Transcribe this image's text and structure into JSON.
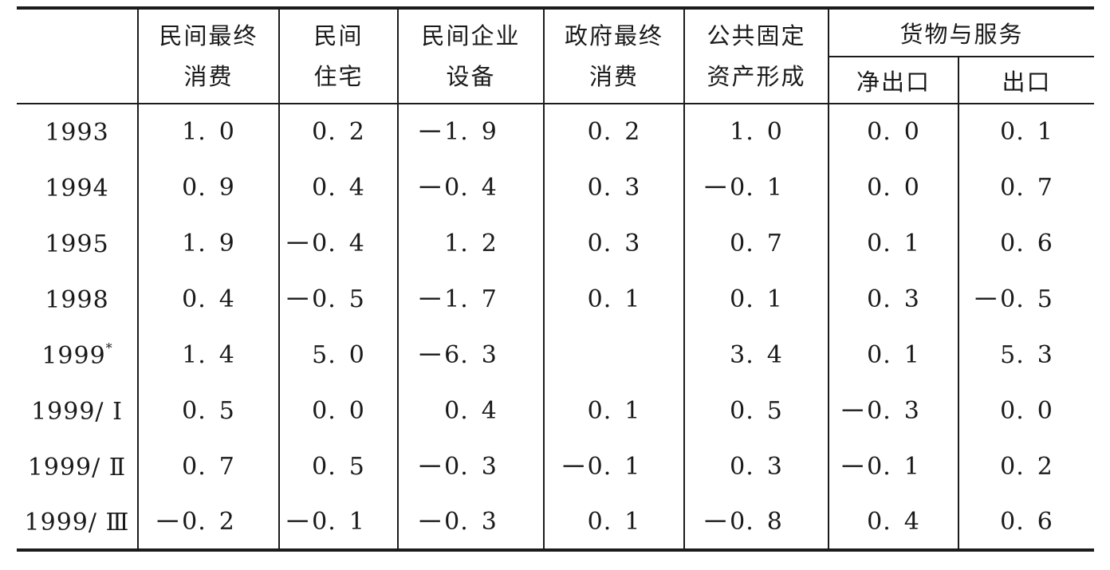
{
  "table": {
    "corner_label": "",
    "col_headers": [
      {
        "label": "民间最终\n消费"
      },
      {
        "label": "民间\n住宅"
      },
      {
        "label": "民间企业\n设备"
      },
      {
        "label": "政府最终\n消费"
      },
      {
        "label": "公共固定\n资产形成"
      }
    ],
    "group_header": {
      "label": "货物与服务",
      "sub": [
        "净出口",
        "出口"
      ]
    },
    "rows": [
      {
        "year": "1993",
        "sup": "",
        "values": [
          "1.0",
          "0.2",
          "−1.9",
          "0.2",
          "1.0",
          "0.0",
          "0.1"
        ]
      },
      {
        "year": "1994",
        "sup": "",
        "values": [
          "0.9",
          "0.4",
          "−0.4",
          "0.3",
          "−0.1",
          "0.0",
          "0.7"
        ]
      },
      {
        "year": "1995",
        "sup": "",
        "values": [
          "1.9",
          "−0.4",
          "1.2",
          "0.3",
          "0.7",
          "0.1",
          "0.6"
        ]
      },
      {
        "year": "1998",
        "sup": "",
        "values": [
          "0.4",
          "−0.5",
          "−1.7",
          "0.1",
          "0.1",
          "0.3",
          "−0.5"
        ]
      },
      {
        "year": "1999",
        "sup": "*",
        "values": [
          "1.4",
          "5.0",
          "−6.3",
          "",
          "3.4",
          "0.1",
          "5.3"
        ]
      },
      {
        "year": "1999/ Ⅰ",
        "sup": "",
        "values": [
          "0.5",
          "0.0",
          "0.4",
          "0.1",
          "0.5",
          "−0.3",
          "0.0"
        ]
      },
      {
        "year": "1999/ Ⅱ",
        "sup": "",
        "values": [
          "0.7",
          "0.5",
          "−0.3",
          "−0.1",
          "0.3",
          "−0.1",
          "0.2"
        ]
      },
      {
        "year": "1999/ Ⅲ",
        "sup": "",
        "values": [
          "−0.2",
          "−0.1",
          "−0.3",
          "0.1",
          "−0.8",
          "0.4",
          "0.6"
        ]
      }
    ]
  }
}
